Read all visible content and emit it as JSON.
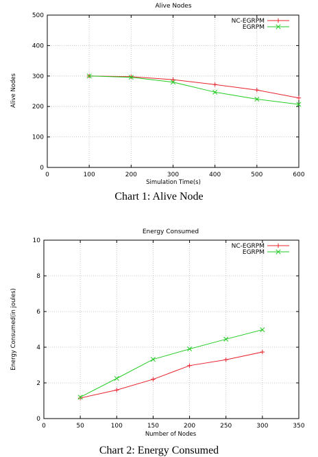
{
  "chart_data": [
    {
      "type": "line",
      "title": "Alive Nodes",
      "xlabel": "Simulation Time(s)",
      "ylabel": "Alive Nodes",
      "xlim": [
        0,
        600
      ],
      "ylim": [
        0,
        500
      ],
      "xticks": [
        0,
        100,
        200,
        300,
        400,
        500,
        600
      ],
      "yticks": [
        0,
        100,
        200,
        300,
        400,
        500
      ],
      "grid": true,
      "legend": "top-right",
      "caption": "Chart 1: Alive Node",
      "series": [
        {
          "name": "NC-EGRPM",
          "color": "#e8202a",
          "marker": "plus",
          "x": [
            100,
            200,
            300,
            400,
            500,
            600
          ],
          "y": [
            300,
            298,
            288,
            272,
            254,
            228
          ]
        },
        {
          "name": "EGRPM",
          "color": "#22cc22",
          "marker": "cross",
          "x": [
            100,
            200,
            300,
            400,
            500,
            600
          ],
          "y": [
            300,
            296,
            280,
            247,
            224,
            207
          ]
        }
      ]
    },
    {
      "type": "line",
      "title": "Energy Consumed",
      "xlabel": "Number of Nodes",
      "ylabel": "Energy Consumed(in joules)",
      "xlim": [
        0,
        350
      ],
      "ylim": [
        0,
        10
      ],
      "xticks": [
        0,
        50,
        100,
        150,
        200,
        250,
        300,
        350
      ],
      "yticks": [
        0,
        2,
        4,
        6,
        8,
        10
      ],
      "grid": true,
      "legend": "top-right",
      "caption": "Chart 2: Energy Consumed",
      "series": [
        {
          "name": "NC-EGRPM",
          "color": "#e8202a",
          "marker": "plus",
          "x": [
            50,
            100,
            150,
            200,
            250,
            300
          ],
          "y": [
            1.15,
            1.6,
            2.2,
            2.97,
            3.3,
            3.73
          ]
        },
        {
          "name": "EGRPM",
          "color": "#22cc22",
          "marker": "cross",
          "x": [
            50,
            100,
            150,
            200,
            250,
            300
          ],
          "y": [
            1.2,
            2.25,
            3.32,
            3.9,
            4.45,
            4.98
          ]
        }
      ]
    }
  ]
}
